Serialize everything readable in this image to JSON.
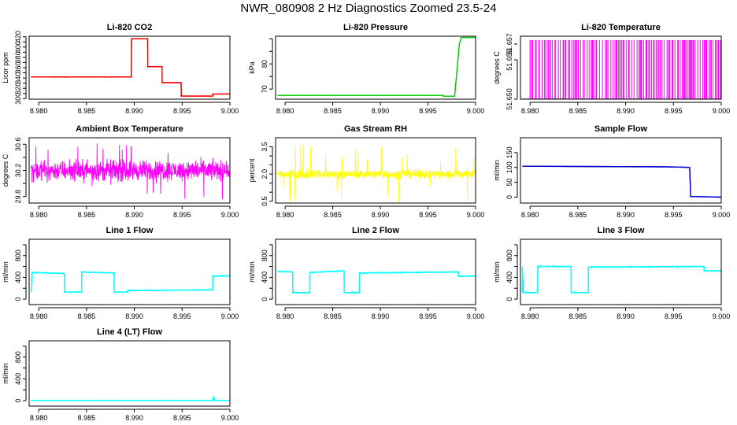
{
  "page_title": "NWR_080908  2 Hz Diagnostics Zoomed 23.5-24",
  "chart_data": [
    {
      "type": "line",
      "title": "Li-820 CO2",
      "ylabel": "Licor ppm",
      "color": "#ff0000",
      "xlim": [
        8.979,
        9.0
      ],
      "ylim": [
        299,
        421
      ],
      "xticks": [
        8.98,
        8.985,
        8.99,
        8.995,
        9.0
      ],
      "xtick_labels": [
        "8.980",
        "8.985",
        "8.990",
        "8.995",
        "9.000"
      ],
      "yticks": [
        300,
        310,
        320,
        330,
        340,
        350,
        360,
        370,
        380,
        390,
        400,
        410,
        420
      ],
      "ytick_labels": [
        "300",
        "",
        "320",
        "",
        "340",
        "",
        "360",
        "",
        "380",
        "",
        "400",
        "",
        "420"
      ],
      "x": [
        8.9792,
        8.9897,
        8.9897,
        8.9914,
        8.9914,
        8.9929,
        8.9929,
        8.9949,
        8.9949,
        8.9982,
        8.9982,
        9.0
      ],
      "y": [
        342,
        342,
        416,
        416,
        362,
        362,
        331,
        331,
        305,
        305,
        309,
        309
      ],
      "noise": 0.6
    },
    {
      "type": "line",
      "title": "Li-820 Pressure",
      "ylabel": "kPa",
      "color": "#00cc00",
      "xlim": [
        8.979,
        9.0
      ],
      "ylim": [
        66,
        91
      ],
      "xticks": [
        8.98,
        8.985,
        8.99,
        8.995,
        9.0
      ],
      "xtick_labels": [
        "8.980",
        "8.985",
        "8.990",
        "8.995",
        "9.000"
      ],
      "yticks": [
        70,
        75,
        80,
        85,
        90
      ],
      "ytick_labels": [
        "70",
        "",
        "80",
        "",
        ""
      ],
      "x": [
        8.9792,
        8.9966,
        8.9966,
        8.9978,
        8.9983,
        8.9985,
        9.0
      ],
      "y": [
        67.5,
        67.5,
        67.2,
        67.2,
        88,
        90.5,
        90.5
      ],
      "noise": 0.05
    },
    {
      "type": "spikes",
      "title": "Li-820 Temperature",
      "ylabel": "degrees C",
      "color": "#ff00ff",
      "xlim": [
        8.979,
        9.0
      ],
      "ylim": [
        51.65,
        51.658
      ],
      "xticks": [
        8.98,
        8.985,
        8.99,
        8.995,
        9.0
      ],
      "xtick_labels": [
        "8.980",
        "8.985",
        "8.990",
        "8.995",
        "9.000"
      ],
      "yticks": [
        51.65,
        51.655
      ],
      "ytick_labels": [
        "51.650",
        "51.655"
      ],
      "ytick_extra": [
        "51.657"
      ],
      "low": 51.65,
      "high": 51.6575
    },
    {
      "type": "noise",
      "title": "Ambient Box Temperature",
      "ylabel": "degrees C",
      "color": "#ff00ff",
      "xlim": [
        8.979,
        9.0
      ],
      "ylim": [
        29.7,
        30.7
      ],
      "xticks": [
        8.98,
        8.985,
        8.99,
        8.995,
        9.0
      ],
      "xtick_labels": [
        "8.980",
        "8.985",
        "8.990",
        "8.995",
        "9.000"
      ],
      "yticks": [
        29.8,
        30.0,
        30.2,
        30.4,
        30.6
      ],
      "ytick_labels": [
        "29.8",
        "",
        "30.2",
        "",
        "30.6"
      ],
      "center": 30.2,
      "spread": 0.22,
      "spike_max": 0.45
    },
    {
      "type": "noise",
      "title": "Gas Stream RH",
      "ylabel": "percent",
      "color": "#ffff00",
      "xlim": [
        8.979,
        9.0
      ],
      "ylim": [
        0.4,
        4.0
      ],
      "xticks": [
        8.98,
        8.985,
        8.99,
        8.995,
        9.0
      ],
      "xtick_labels": [
        "8.980",
        "8.985",
        "8.990",
        "8.995",
        "9.000"
      ],
      "yticks": [
        0.5,
        1.0,
        1.5,
        2.0,
        2.5,
        3.0,
        3.5
      ],
      "ytick_labels": [
        "0.5",
        "",
        "",
        "2.0",
        "",
        "",
        "3.5"
      ],
      "center": 2.0,
      "spread": 0.35,
      "spike_max": 1.7
    },
    {
      "type": "line",
      "title": "Sample Flow",
      "ylabel": "ml/min",
      "color": "#0000cc",
      "xlim": [
        8.979,
        9.0
      ],
      "ylim": [
        -20,
        200
      ],
      "xticks": [
        8.98,
        8.985,
        8.99,
        8.995,
        9.0
      ],
      "xtick_labels": [
        "8.980",
        "8.985",
        "8.990",
        "8.995",
        "9.000"
      ],
      "yticks": [
        0,
        50,
        100,
        150
      ],
      "ytick_labels": [
        "0",
        "50",
        "100",
        "150"
      ],
      "x": [
        8.9792,
        8.9944,
        8.9967,
        8.9967,
        8.9968,
        9.0
      ],
      "y": [
        104,
        102,
        100,
        100,
        2,
        0
      ],
      "noise": 0.8
    },
    {
      "type": "line",
      "title": "Line 1 Flow",
      "ylabel": "ml/min",
      "color": "#00ffff",
      "xlim": [
        8.979,
        9.0
      ],
      "ylim": [
        -100,
        1100
      ],
      "xticks": [
        8.98,
        8.985,
        8.99,
        8.995,
        9.0
      ],
      "xtick_labels": [
        "8.980",
        "8.985",
        "8.990",
        "8.995",
        "9.000"
      ],
      "yticks": [
        0,
        200,
        400,
        600,
        800,
        1000
      ],
      "ytick_labels": [
        "0",
        "",
        "400",
        "",
        "800",
        ""
      ],
      "x": [
        8.9792,
        8.9793,
        8.9827,
        8.9827,
        8.9845,
        8.9845,
        8.9879,
        8.9879,
        8.9893,
        8.9893,
        8.9982,
        8.9982,
        9.0
      ],
      "y": [
        130,
        490,
        470,
        130,
        130,
        500,
        480,
        130,
        130,
        160,
        170,
        420,
        430
      ],
      "noise": 10
    },
    {
      "type": "line",
      "title": "Line 2 Flow",
      "ylabel": "ml/min",
      "color": "#00ffff",
      "xlim": [
        8.979,
        9.0
      ],
      "ylim": [
        -100,
        1100
      ],
      "xticks": [
        8.98,
        8.985,
        8.99,
        8.995,
        9.0
      ],
      "xtick_labels": [
        "8.980",
        "8.985",
        "8.990",
        "8.995",
        "9.000"
      ],
      "yticks": [
        0,
        200,
        400,
        600,
        800,
        1000
      ],
      "ytick_labels": [
        "0",
        "",
        "400",
        "",
        "800",
        ""
      ],
      "x": [
        8.9792,
        8.9808,
        8.9808,
        8.9826,
        8.9826,
        8.9862,
        8.9862,
        8.9878,
        8.9878,
        8.9982,
        8.9982,
        9.0
      ],
      "y": [
        510,
        500,
        120,
        120,
        490,
        520,
        120,
        120,
        480,
        500,
        420,
        420
      ],
      "noise": 12
    },
    {
      "type": "line",
      "title": "Line 3 Flow",
      "ylabel": "ml/min",
      "color": "#00ffff",
      "xlim": [
        8.979,
        9.0
      ],
      "ylim": [
        -100,
        1100
      ],
      "xticks": [
        8.98,
        8.985,
        8.99,
        8.995,
        9.0
      ],
      "xtick_labels": [
        "8.980",
        "8.985",
        "8.990",
        "8.995",
        "9.000"
      ],
      "yticks": [
        0,
        200,
        400,
        600,
        800,
        1000
      ],
      "ytick_labels": [
        "0",
        "",
        "400",
        "",
        "800",
        ""
      ],
      "x": [
        8.9792,
        8.9792,
        8.9793,
        8.9808,
        8.9808,
        8.9843,
        8.9843,
        8.9861,
        8.9861,
        8.9982,
        8.9982,
        9.0
      ],
      "y": [
        120,
        600,
        120,
        120,
        600,
        600,
        120,
        120,
        590,
        600,
        520,
        520
      ],
      "noise": 12
    },
    {
      "type": "line",
      "title": "Line 4 (LT) Flow",
      "ylabel": "ml/min",
      "color": "#00ffff",
      "xlim": [
        8.979,
        9.0
      ],
      "ylim": [
        -100,
        1100
      ],
      "xticks": [
        8.98,
        8.985,
        8.99,
        8.995,
        9.0
      ],
      "xtick_labels": [
        "8.980",
        "8.985",
        "8.990",
        "8.995",
        "9.000"
      ],
      "yticks": [
        0,
        200,
        400,
        600,
        800,
        1000
      ],
      "ytick_labels": [
        "0",
        "",
        "400",
        "",
        "800",
        ""
      ],
      "x": [
        8.9792,
        8.9982,
        8.9983,
        8.9984,
        9.0
      ],
      "y": [
        4,
        4,
        80,
        4,
        4
      ],
      "noise": 2
    }
  ]
}
